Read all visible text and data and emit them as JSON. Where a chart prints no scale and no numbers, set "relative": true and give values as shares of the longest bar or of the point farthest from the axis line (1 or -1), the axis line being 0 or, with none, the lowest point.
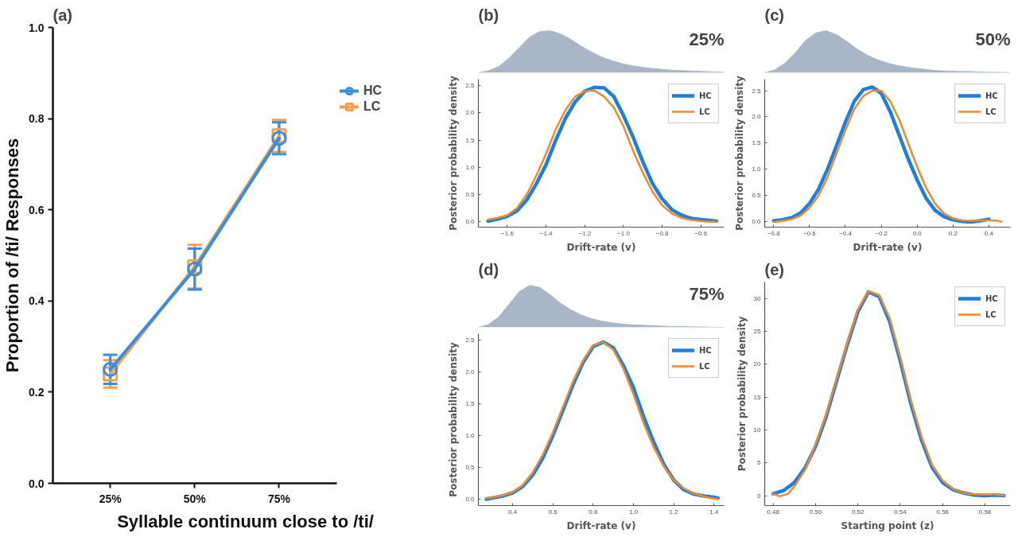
{
  "chart_data": [
    {
      "type": "line",
      "title": "(a)",
      "xlabel": "Syllable continuum close to /ti/",
      "ylabel": "Proportion of /ti/ Responses",
      "categories": [
        "25%",
        "50%",
        "75%"
      ],
      "ylim": [
        0,
        1.0
      ],
      "yticks": [
        {
          "value": 0,
          "label": "0.0"
        },
        0.2,
        0.4,
        0.6,
        0.8,
        {
          "value": 1.0,
          "label": "1.0"
        }
      ],
      "grid": false,
      "legend": "right",
      "series": [
        {
          "name": "LC",
          "color": "#f0a04e",
          "values": [
            0.24,
            0.475,
            0.762
          ],
          "errors": [
            0.03,
            0.048,
            0.035
          ],
          "marker": "square"
        },
        {
          "name": "HC",
          "color": "#3a8ee2",
          "values": [
            0.25,
            0.47,
            0.757
          ],
          "errors": [
            0.032,
            0.045,
            0.035
          ],
          "marker": "circle"
        }
      ]
    },
    {
      "type": "area",
      "relative": true,
      "title": "(b)",
      "annotations": [
        "25%"
      ],
      "categories": [
        null,
        null,
        null,
        null,
        null,
        null,
        null,
        null,
        null,
        null,
        null,
        null,
        null,
        null,
        null,
        null,
        null,
        null,
        null,
        null,
        null,
        null,
        null,
        null,
        null
      ],
      "series": [
        {
          "type": "area",
          "color": "#a8b6c8",
          "values": [
            0.0,
            0.05,
            0.15,
            0.35,
            0.6,
            0.85,
            0.98,
            1.0,
            0.93,
            0.8,
            0.64,
            0.5,
            0.38,
            0.29,
            0.22,
            0.17,
            0.13,
            0.1,
            0.08,
            0.06,
            0.05,
            0.04,
            0.03,
            0.02,
            0.01
          ]
        }
      ]
    },
    {
      "type": "line",
      "xlabel": "Drift-rate (v)",
      "ylabel": "Posterior probability density",
      "xlim": [
        -1.75,
        -0.48
      ],
      "xticks": [
        {
          "value": -1.6,
          "label": "−1.6"
        },
        {
          "value": -1.4,
          "label": "−1.4"
        },
        {
          "value": -1.2,
          "label": "−1.2"
        },
        {
          "value": -1.0,
          "label": "−1.0"
        },
        {
          "value": -0.8,
          "label": "−0.8"
        },
        {
          "value": -0.6,
          "label": "−0.6"
        }
      ],
      "ylim": [
        -0.1,
        2.62
      ],
      "yticks": [
        {
          "value": 0,
          "label": "0.0"
        },
        0.5,
        {
          "value": 1,
          "label": "1.0"
        },
        1.5,
        {
          "value": 2,
          "label": "2.0"
        },
        2.5
      ],
      "grid": false,
      "legend": "top right",
      "series": [
        {
          "name": "HC",
          "color": "#1f7fe0",
          "x": [
            -1.7,
            -1.65,
            -1.6,
            -1.55,
            -1.5,
            -1.45,
            -1.4,
            -1.35,
            -1.3,
            -1.25,
            -1.2,
            -1.15,
            -1.1,
            -1.05,
            -1.0,
            -0.95,
            -0.9,
            -0.85,
            -0.8,
            -0.75,
            -0.7,
            -0.65,
            -0.6,
            -0.55,
            -0.52
          ],
          "values": [
            0.01,
            0.05,
            0.1,
            0.2,
            0.4,
            0.7,
            1.05,
            1.5,
            1.9,
            2.2,
            2.4,
            2.47,
            2.46,
            2.3,
            1.95,
            1.55,
            1.1,
            0.7,
            0.42,
            0.22,
            0.12,
            0.06,
            0.04,
            0.02,
            0.01
          ]
        },
        {
          "name": "LC",
          "color": "#f0892a",
          "x": [
            -1.7,
            -1.65,
            -1.6,
            -1.55,
            -1.5,
            -1.45,
            -1.4,
            -1.35,
            -1.3,
            -1.25,
            -1.2,
            -1.15,
            -1.1,
            -1.05,
            -1.0,
            -0.95,
            -0.9,
            -0.85,
            -0.8,
            -0.75,
            -0.7,
            -0.65,
            -0.6,
            -0.55,
            -0.52
          ],
          "values": [
            0.04,
            0.07,
            0.12,
            0.25,
            0.5,
            0.85,
            1.25,
            1.7,
            2.05,
            2.3,
            2.4,
            2.41,
            2.3,
            2.1,
            1.75,
            1.3,
            0.9,
            0.55,
            0.3,
            0.15,
            0.07,
            0.03,
            0.01,
            0.0,
            0.0
          ]
        }
      ]
    },
    {
      "type": "area",
      "relative": true,
      "title": "(c)",
      "annotations": [
        "50%"
      ],
      "categories": [
        null,
        null,
        null,
        null,
        null,
        null,
        null,
        null,
        null,
        null,
        null,
        null,
        null,
        null,
        null,
        null,
        null,
        null,
        null,
        null,
        null,
        null,
        null,
        null,
        null
      ],
      "series": [
        {
          "type": "area",
          "color": "#a8b6c8",
          "values": [
            0.0,
            0.07,
            0.23,
            0.48,
            0.77,
            0.95,
            1.0,
            0.91,
            0.75,
            0.57,
            0.42,
            0.31,
            0.23,
            0.17,
            0.13,
            0.1,
            0.07,
            0.05,
            0.04,
            0.03,
            0.03,
            0.02,
            0.01,
            0.01,
            0.0
          ]
        }
      ]
    },
    {
      "type": "line",
      "xlabel": "Drift-rate (v)",
      "ylabel": "Posterior probability density",
      "xlim": [
        -0.85,
        0.52
      ],
      "xticks": [
        {
          "value": -0.8,
          "label": "−0.8"
        },
        {
          "value": -0.6,
          "label": "−0.6"
        },
        {
          "value": -0.4,
          "label": "−0.4"
        },
        {
          "value": -0.2,
          "label": "−0.2"
        },
        {
          "value": 0,
          "label": "0.0"
        },
        0.2,
        0.4
      ],
      "ylim": [
        -0.1,
        2.72
      ],
      "yticks": [
        {
          "value": 0,
          "label": "0.0"
        },
        0.5,
        {
          "value": 1,
          "label": "1.0"
        },
        1.5,
        {
          "value": 2,
          "label": "2.0"
        },
        2.5
      ],
      "grid": false,
      "legend": "top right",
      "series": [
        {
          "name": "HC",
          "color": "#1f7fe0",
          "x": [
            -0.8,
            -0.75,
            -0.7,
            -0.65,
            -0.6,
            -0.55,
            -0.5,
            -0.45,
            -0.4,
            -0.35,
            -0.3,
            -0.25,
            -0.2,
            -0.15,
            -0.1,
            -0.05,
            0.0,
            0.05,
            0.1,
            0.15,
            0.2,
            0.25,
            0.3,
            0.35,
            0.4
          ],
          "values": [
            0.02,
            0.04,
            0.08,
            0.17,
            0.35,
            0.62,
            1.0,
            1.45,
            1.9,
            2.3,
            2.52,
            2.57,
            2.45,
            2.1,
            1.65,
            1.2,
            0.8,
            0.45,
            0.22,
            0.1,
            0.04,
            0.01,
            0.0,
            0.02,
            0.05
          ]
        },
        {
          "name": "LC",
          "color": "#f0892a",
          "x": [
            -0.8,
            -0.75,
            -0.7,
            -0.65,
            -0.6,
            -0.55,
            -0.5,
            -0.45,
            -0.4,
            -0.35,
            -0.3,
            -0.25,
            -0.2,
            -0.15,
            -0.1,
            -0.05,
            0.0,
            0.05,
            0.1,
            0.15,
            0.2,
            0.25,
            0.3,
            0.35,
            0.4,
            0.45,
            0.47
          ],
          "values": [
            0.0,
            0.02,
            0.05,
            0.12,
            0.27,
            0.5,
            0.85,
            1.3,
            1.75,
            2.15,
            2.4,
            2.5,
            2.5,
            2.3,
            1.95,
            1.5,
            1.05,
            0.65,
            0.35,
            0.16,
            0.07,
            0.03,
            0.02,
            0.03,
            0.03,
            0.02,
            0.0
          ]
        }
      ]
    },
    {
      "type": "area",
      "relative": true,
      "title": "(d)",
      "annotations": [
        "75%"
      ],
      "categories": [
        null,
        null,
        null,
        null,
        null,
        null,
        null,
        null,
        null,
        null,
        null,
        null,
        null,
        null,
        null,
        null,
        null,
        null,
        null,
        null,
        null,
        null,
        null,
        null,
        null
      ],
      "series": [
        {
          "type": "area",
          "color": "#a8b6c8",
          "values": [
            0.0,
            0.07,
            0.25,
            0.55,
            0.85,
            1.0,
            0.95,
            0.78,
            0.58,
            0.42,
            0.3,
            0.21,
            0.15,
            0.11,
            0.08,
            0.06,
            0.05,
            0.04,
            0.03,
            0.02,
            0.02,
            0.01,
            0.01,
            0.0,
            0.0
          ]
        }
      ]
    },
    {
      "type": "line",
      "xlabel": "Drift-rate (v)",
      "ylabel": "Posterior probability density",
      "xlim": [
        0.23,
        1.45
      ],
      "xticks": [
        0.4,
        0.6,
        0.8,
        {
          "value": 1.0,
          "label": "1.0"
        },
        1.2,
        1.4
      ],
      "ylim": [
        -0.1,
        2.6
      ],
      "yticks": [
        {
          "value": 0,
          "label": "0.0"
        },
        0.5,
        {
          "value": 1,
          "label": "1.0"
        },
        1.5,
        {
          "value": 2,
          "label": "2.0"
        },
        2.5
      ],
      "grid": false,
      "legend": "top right",
      "series": [
        {
          "name": "HC",
          "color": "#1f7fe0",
          "x": [
            0.27,
            0.3,
            0.35,
            0.4,
            0.45,
            0.5,
            0.55,
            0.6,
            0.65,
            0.7,
            0.75,
            0.8,
            0.85,
            0.9,
            0.95,
            1.0,
            1.05,
            1.1,
            1.15,
            1.2,
            1.25,
            1.3,
            1.35,
            1.4,
            1.42
          ],
          "values": [
            0.0,
            0.02,
            0.05,
            0.1,
            0.2,
            0.38,
            0.65,
            1.0,
            1.4,
            1.8,
            2.15,
            2.4,
            2.47,
            2.38,
            2.1,
            1.75,
            1.3,
            0.9,
            0.55,
            0.3,
            0.15,
            0.08,
            0.05,
            0.03,
            0.02
          ]
        },
        {
          "name": "LC",
          "color": "#f0892a",
          "x": [
            0.27,
            0.3,
            0.35,
            0.4,
            0.45,
            0.5,
            0.55,
            0.6,
            0.65,
            0.7,
            0.75,
            0.8,
            0.85,
            0.9,
            0.95,
            1.0,
            1.05,
            1.1,
            1.15,
            1.2,
            1.25,
            1.3,
            1.35,
            1.4,
            1.42
          ],
          "values": [
            0.02,
            0.03,
            0.06,
            0.11,
            0.22,
            0.42,
            0.7,
            1.05,
            1.45,
            1.85,
            2.18,
            2.42,
            2.47,
            2.35,
            2.05,
            1.65,
            1.2,
            0.82,
            0.52,
            0.3,
            0.17,
            0.09,
            0.04,
            0.01,
            0.0
          ]
        }
      ]
    },
    {
      "type": "line",
      "title": "(e)",
      "xlabel": "Starting point (z)",
      "ylabel": "Posterior probability density",
      "xlim": [
        0.476,
        0.592
      ],
      "xticks": [
        0.48,
        {
          "value": 0.5,
          "label": "0.50"
        },
        0.52,
        0.54,
        0.56,
        0.58
      ],
      "ylim": [
        -1.5,
        32.5
      ],
      "yticks": [
        0,
        5,
        10,
        15,
        20,
        25,
        30
      ],
      "grid": false,
      "legend": "top right",
      "series": [
        {
          "name": "HC",
          "color": "#1f7fe0",
          "x": [
            0.48,
            0.485,
            0.49,
            0.495,
            0.5,
            0.505,
            0.51,
            0.515,
            0.52,
            0.525,
            0.53,
            0.535,
            0.54,
            0.545,
            0.55,
            0.555,
            0.56,
            0.565,
            0.57,
            0.575,
            0.58,
            0.585,
            0.589
          ],
          "values": [
            0.3,
            0.8,
            2.0,
            4.2,
            7.5,
            12,
            17.5,
            23,
            28,
            31,
            30.3,
            26.5,
            20.5,
            14,
            8.5,
            4.3,
            2.0,
            0.9,
            0.4,
            0.1,
            0.0,
            0.1,
            0.0
          ]
        },
        {
          "name": "LC",
          "color": "#f0892a",
          "x": [
            0.48,
            0.483,
            0.487,
            0.49,
            0.495,
            0.5,
            0.505,
            0.51,
            0.515,
            0.52,
            0.525,
            0.53,
            0.535,
            0.54,
            0.545,
            0.55,
            0.555,
            0.56,
            0.565,
            0.57,
            0.575,
            0.58,
            0.585,
            0.589
          ],
          "values": [
            0.3,
            -0.1,
            0.3,
            1.4,
            3.9,
            7.8,
            12.3,
            17.8,
            23.3,
            28.3,
            31.1,
            30.5,
            27,
            21,
            14.5,
            9,
            4.7,
            2.3,
            1.0,
            0.4,
            0.2,
            0.2,
            0.2,
            0.0
          ]
        }
      ]
    }
  ]
}
